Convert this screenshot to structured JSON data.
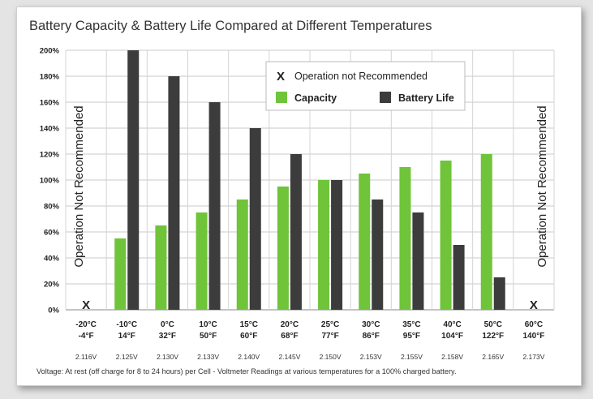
{
  "chart_data": {
    "type": "bar",
    "title": "Battery Capacity & Battery Life Compared at Different Temperatures",
    "ylim": [
      0,
      200
    ],
    "yticks": [
      "0%",
      "20%",
      "40%",
      "60%",
      "80%",
      "100%",
      "120%",
      "140%",
      "160%",
      "180%",
      "200%"
    ],
    "grid": true,
    "legend_position": "top-right",
    "categories": [
      {
        "c": "-20°C",
        "f": "-4°F",
        "v": "2.116V"
      },
      {
        "c": "-10°C",
        "f": "14°F",
        "v": "2.125V"
      },
      {
        "c": "0°C",
        "f": "32°F",
        "v": "2.130V"
      },
      {
        "c": "10°C",
        "f": "50°F",
        "v": "2.133V"
      },
      {
        "c": "15°C",
        "f": "60°F",
        "v": "2.140V"
      },
      {
        "c": "20°C",
        "f": "68°F",
        "v": "2.145V"
      },
      {
        "c": "25°C",
        "f": "77°F",
        "v": "2.150V"
      },
      {
        "c": "30°C",
        "f": "86°F",
        "v": "2.153V"
      },
      {
        "c": "35°C",
        "f": "95°F",
        "v": "2.155V"
      },
      {
        "c": "40°C",
        "f": "104°F",
        "v": "2.158V"
      },
      {
        "c": "50°C",
        "f": "122°F",
        "v": "2.165V"
      },
      {
        "c": "60°C",
        "f": "140°F",
        "v": "2.173V"
      }
    ],
    "series": [
      {
        "name": "Capacity",
        "color": "#6fc43a",
        "values": [
          null,
          55,
          65,
          75,
          85,
          95,
          100,
          105,
          110,
          115,
          120,
          null
        ]
      },
      {
        "name": "Battery Life",
        "color": "#3c3c3c",
        "values": [
          null,
          200,
          180,
          160,
          140,
          120,
          100,
          85,
          75,
          50,
          25,
          null
        ]
      }
    ],
    "not_recommended": {
      "marker": "X",
      "label": "Operation not Recommended",
      "vertical_label": "Operation Not Recommended",
      "category_indices": [
        0,
        11
      ]
    },
    "footnote": "Voltage:  At rest (off charge for 8 to 24 hours) per Cell - Voltmeter Readings at various temperatures for a 100% charged battery."
  }
}
